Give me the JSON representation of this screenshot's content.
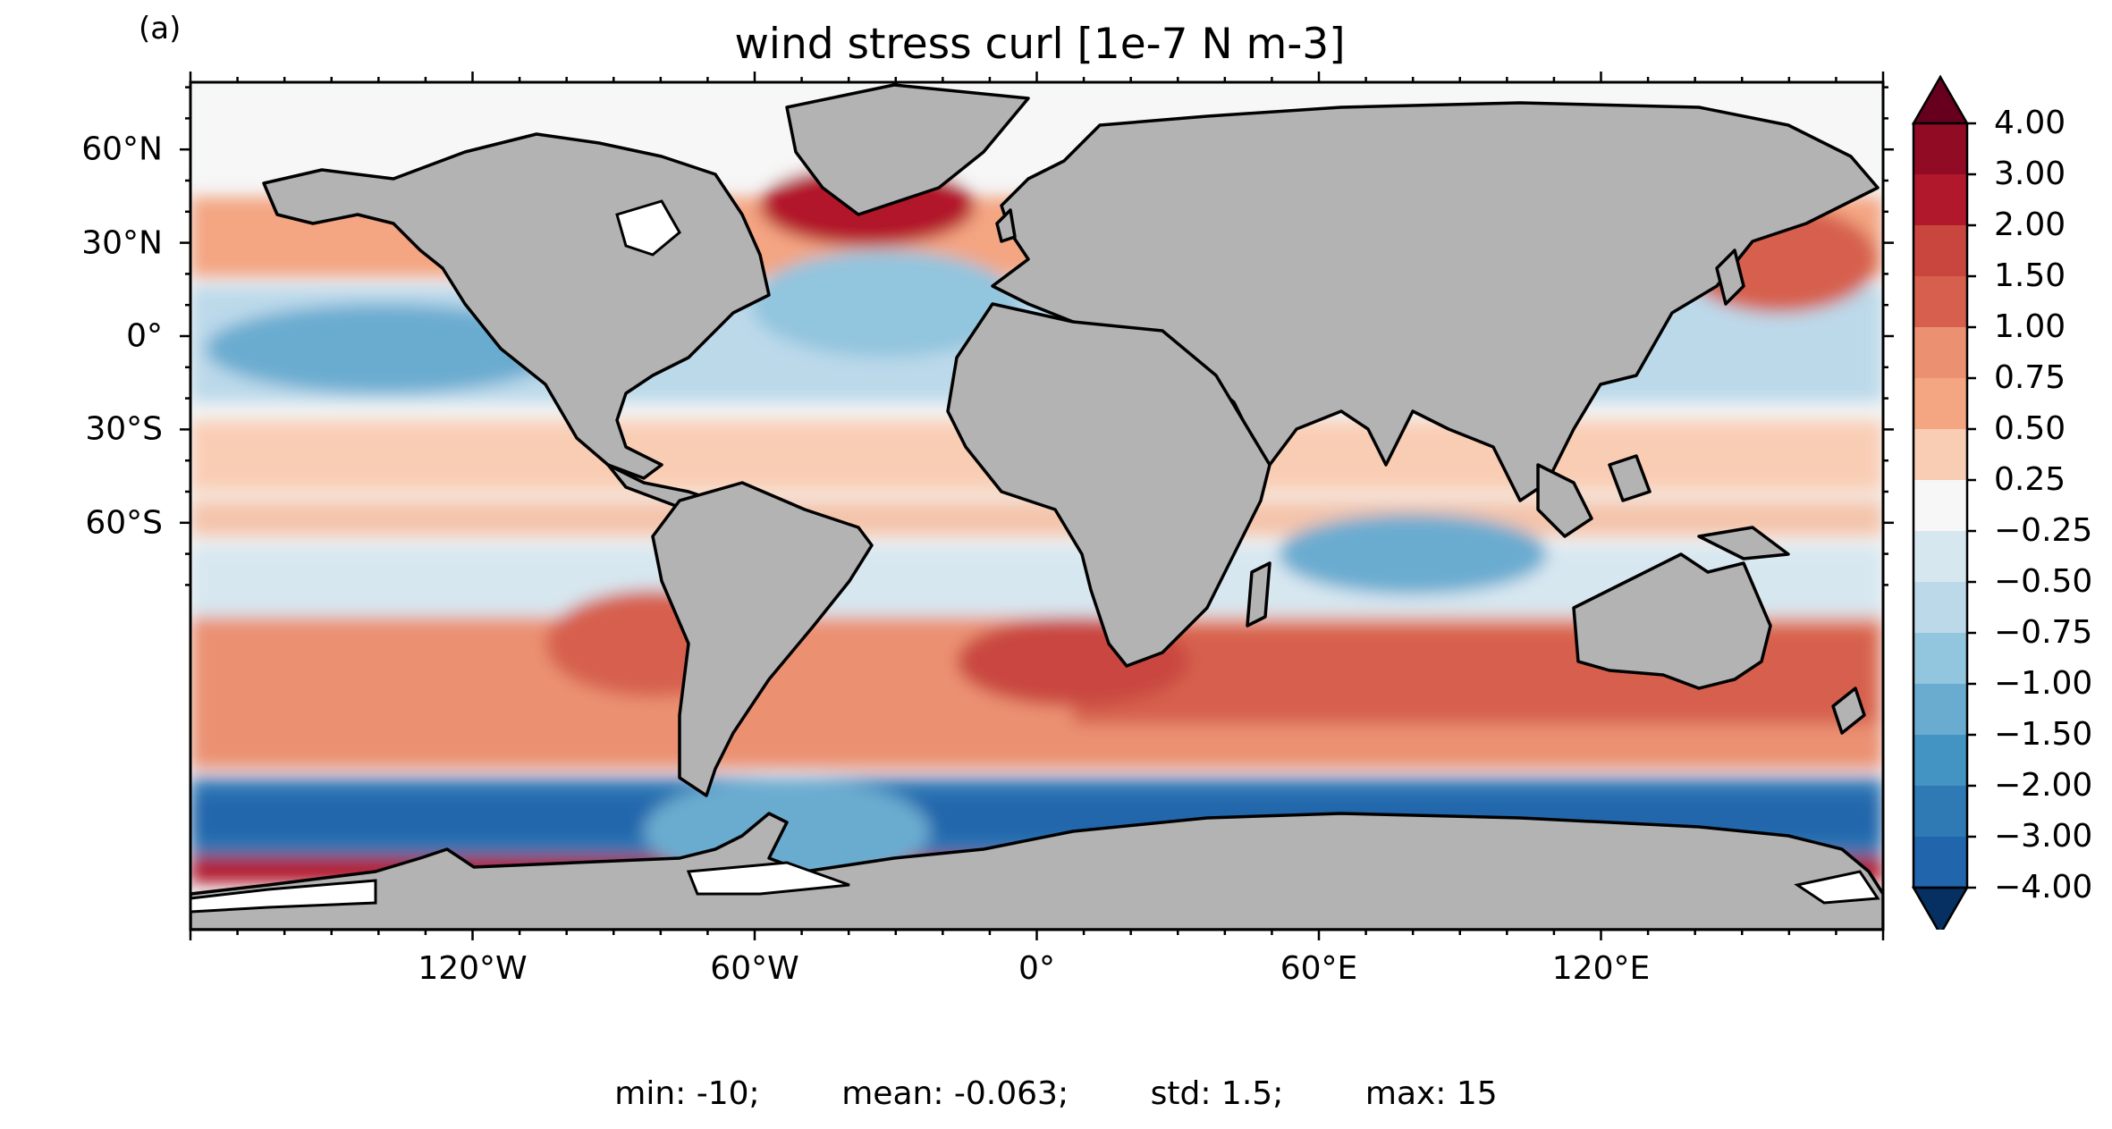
{
  "figure": {
    "panel_letter": "(a)",
    "title": "wind stress curl [1e-7 N m-3]"
  },
  "map": {
    "projection": "PlateCarree",
    "ocean_neutral_color": "#f4f6f6",
    "land_color": "#b3b3b3",
    "coast_color": "#000000",
    "lon_ticks": [
      "120°W",
      "60°W",
      "0°",
      "60°E",
      "120°E"
    ],
    "lon_values": [
      -120,
      -60,
      0,
      60,
      120
    ],
    "lat_ticks": [
      "60°N",
      "30°N",
      "0°",
      "30°S",
      "60°S"
    ],
    "lat_values": [
      60,
      30,
      0,
      -30,
      -60
    ]
  },
  "colorbar": {
    "extend": "both",
    "levels": [
      "4.00",
      "3.00",
      "2.00",
      "1.50",
      "1.00",
      "0.75",
      "0.50",
      "0.25",
      "−0.25",
      "−0.50",
      "−0.75",
      "−1.00",
      "−1.50",
      "−2.00",
      "−3.00",
      "−4.00"
    ],
    "colors": [
      "#67001f",
      "#920b25",
      "#b2182b",
      "#c9463f",
      "#d6604d",
      "#eb9172",
      "#f4a582",
      "#f9cdb4",
      "#f7f7f7",
      "#d7e7f0",
      "#bcd9ea",
      "#92c5de",
      "#6aacd0",
      "#4393c3",
      "#2f79b5",
      "#2166ac",
      "#053061"
    ]
  },
  "stats": {
    "min": "min: -10;",
    "mean": "mean: -0.063;",
    "std": "std: 1.5;",
    "max": "max: 15"
  }
}
